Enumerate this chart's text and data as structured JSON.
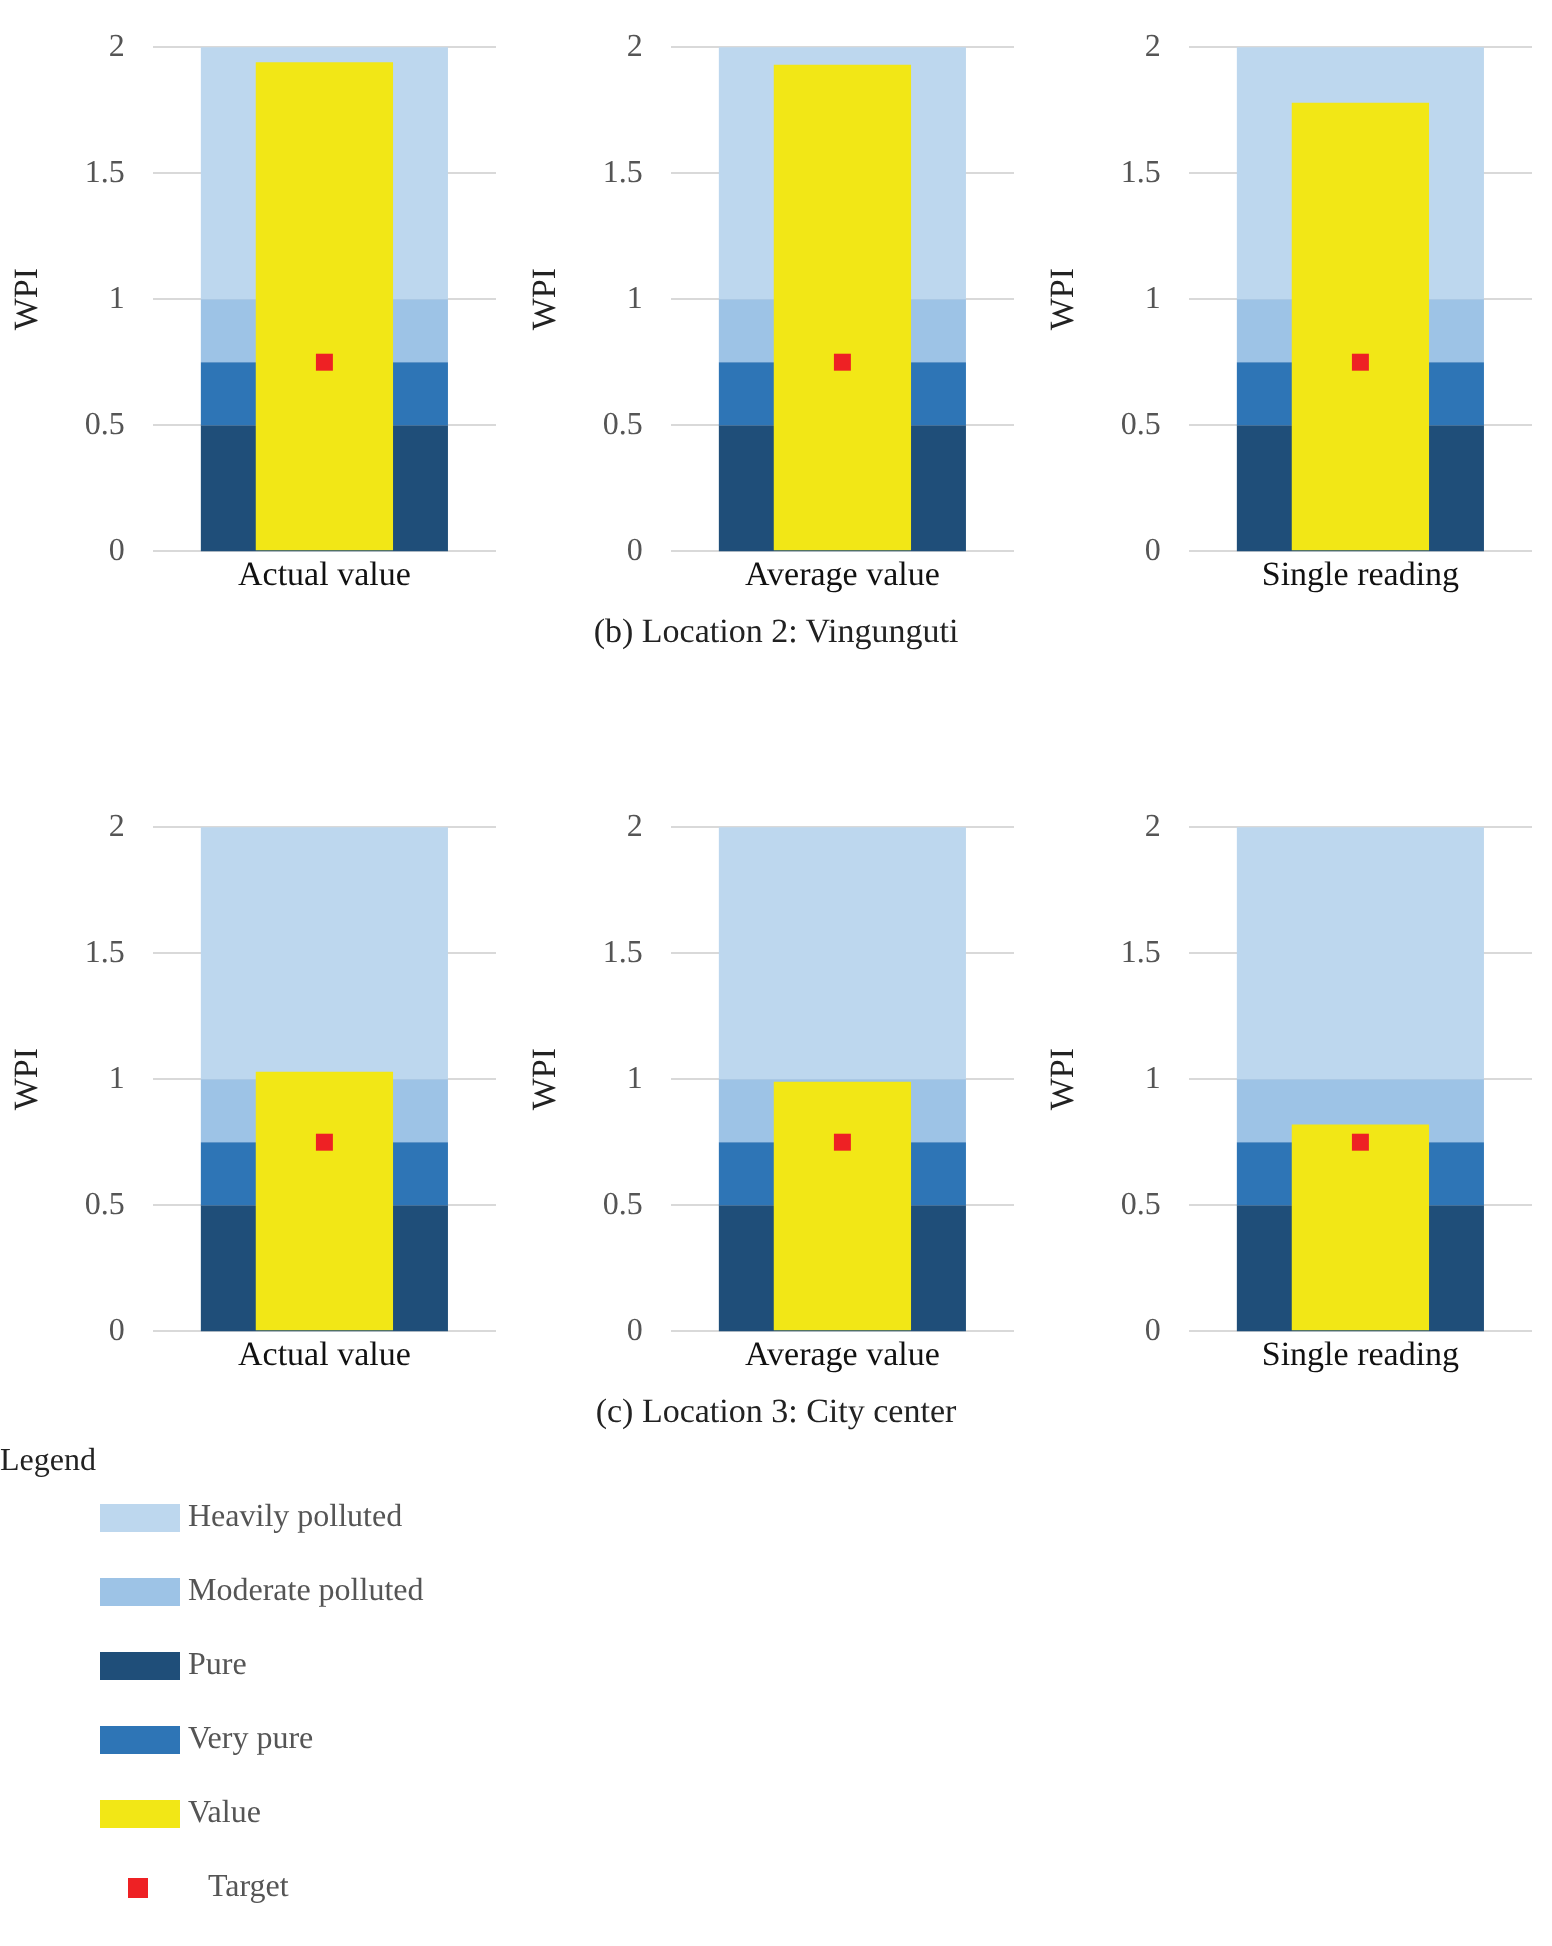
{
  "chart_data": [
    {
      "type": "bar",
      "categories": [
        "Actual value"
      ],
      "ylabel": "WPI",
      "ylim": [
        0,
        2
      ],
      "yticks": [
        0,
        0.5,
        1,
        1.5,
        2
      ],
      "grid": "y",
      "series": [
        {
          "color": "#f2e716",
          "values": [
            1.94
          ]
        },
        {
          "type": "scatter",
          "marker": "square",
          "color": "#ee2124",
          "x": [
            "Actual value"
          ],
          "values": [
            0.75
          ]
        }
      ],
      "bands": [
        {
          "axis": "y",
          "from": 1,
          "to": 2,
          "color": "#bdd7ee"
        },
        {
          "axis": "y",
          "from": 0.75,
          "to": 1,
          "color": "#9dc3e6"
        },
        {
          "axis": "y",
          "from": 0,
          "to": 0.5,
          "color": "#1f4e79"
        },
        {
          "axis": "y",
          "from": 0.5,
          "to": 0.75,
          "color": "#2e75b6"
        }
      ]
    },
    {
      "type": "bar",
      "categories": [
        "Average value"
      ],
      "ylabel": "WPI",
      "ylim": [
        0,
        2
      ],
      "yticks": [
        0,
        0.5,
        1,
        1.5,
        2
      ],
      "grid": "y",
      "annotations": [
        "(b) Location 2: Vingunguti"
      ],
      "series": [
        {
          "color": "#f2e716",
          "values": [
            1.93
          ]
        },
        {
          "type": "scatter",
          "marker": "square",
          "color": "#ee2124",
          "x": [
            "Average value"
          ],
          "values": [
            0.75
          ]
        }
      ],
      "bands": [
        {
          "axis": "y",
          "from": 1,
          "to": 2,
          "color": "#bdd7ee"
        },
        {
          "axis": "y",
          "from": 0.75,
          "to": 1,
          "color": "#9dc3e6"
        },
        {
          "axis": "y",
          "from": 0,
          "to": 0.5,
          "color": "#1f4e79"
        },
        {
          "axis": "y",
          "from": 0.5,
          "to": 0.75,
          "color": "#2e75b6"
        }
      ]
    },
    {
      "type": "bar",
      "categories": [
        "Single reading"
      ],
      "ylabel": "WPI",
      "ylim": [
        0,
        2
      ],
      "yticks": [
        0,
        0.5,
        1,
        1.5,
        2
      ],
      "grid": "y",
      "series": [
        {
          "color": "#f2e716",
          "values": [
            1.78
          ]
        },
        {
          "type": "scatter",
          "marker": "square",
          "color": "#ee2124",
          "x": [
            "Single reading"
          ],
          "values": [
            0.75
          ]
        }
      ],
      "bands": [
        {
          "axis": "y",
          "from": 1,
          "to": 2,
          "color": "#bdd7ee"
        },
        {
          "axis": "y",
          "from": 0.75,
          "to": 1,
          "color": "#9dc3e6"
        },
        {
          "axis": "y",
          "from": 0,
          "to": 0.5,
          "color": "#1f4e79"
        },
        {
          "axis": "y",
          "from": 0.5,
          "to": 0.75,
          "color": "#2e75b6"
        }
      ]
    },
    {
      "type": "bar",
      "categories": [
        "Actual value"
      ],
      "ylabel": "WPI",
      "ylim": [
        0,
        2
      ],
      "yticks": [
        0,
        0.5,
        1,
        1.5,
        2
      ],
      "grid": "y",
      "series": [
        {
          "color": "#f2e716",
          "values": [
            1.03
          ]
        },
        {
          "type": "scatter",
          "marker": "square",
          "color": "#ee2124",
          "x": [
            "Actual value"
          ],
          "values": [
            0.75
          ]
        }
      ],
      "bands": [
        {
          "axis": "y",
          "from": 1,
          "to": 2,
          "color": "#bdd7ee"
        },
        {
          "axis": "y",
          "from": 0.75,
          "to": 1,
          "color": "#9dc3e6"
        },
        {
          "axis": "y",
          "from": 0,
          "to": 0.5,
          "color": "#1f4e79"
        },
        {
          "axis": "y",
          "from": 0.5,
          "to": 0.75,
          "color": "#2e75b6"
        }
      ]
    },
    {
      "type": "bar",
      "categories": [
        "Average value"
      ],
      "ylabel": "WPI",
      "ylim": [
        0,
        2
      ],
      "yticks": [
        0,
        0.5,
        1,
        1.5,
        2
      ],
      "grid": "y",
      "annotations": [
        "(c) Location 3: City center"
      ],
      "series": [
        {
          "color": "#f2e716",
          "values": [
            0.99
          ]
        },
        {
          "type": "scatter",
          "marker": "square",
          "color": "#ee2124",
          "x": [
            "Average value"
          ],
          "values": [
            0.75
          ]
        }
      ],
      "bands": [
        {
          "axis": "y",
          "from": 1,
          "to": 2,
          "color": "#bdd7ee"
        },
        {
          "axis": "y",
          "from": 0.75,
          "to": 1,
          "color": "#9dc3e6"
        },
        {
          "axis": "y",
          "from": 0,
          "to": 0.5,
          "color": "#1f4e79"
        },
        {
          "axis": "y",
          "from": 0.5,
          "to": 0.75,
          "color": "#2e75b6"
        }
      ]
    },
    {
      "type": "bar",
      "categories": [
        "Single reading"
      ],
      "ylabel": "WPI",
      "ylim": [
        0,
        2
      ],
      "yticks": [
        0,
        0.5,
        1,
        1.5,
        2
      ],
      "grid": "y",
      "legend": "bottom",
      "legend_title": "Legend",
      "series": [
        {
          "name": "Value",
          "color": "#f2e716",
          "values": [
            0.82
          ]
        },
        {
          "type": "scatter",
          "marker": "square",
          "name": "Target",
          "color": "#ee2124",
          "x": [
            "Single reading"
          ],
          "values": [
            0.75
          ]
        }
      ],
      "bands": [
        {
          "axis": "y",
          "from": 1,
          "to": 2,
          "label": "Heavily polluted",
          "color": "#bdd7ee"
        },
        {
          "axis": "y",
          "from": 0.75,
          "to": 1,
          "label": "Moderate polluted",
          "color": "#9dc3e6"
        },
        {
          "axis": "y",
          "from": 0,
          "to": 0.5,
          "label": "Pure",
          "color": "#1f4e79"
        },
        {
          "axis": "y",
          "from": 0.5,
          "to": 0.75,
          "label": "Very pure",
          "color": "#2e75b6"
        }
      ]
    }
  ]
}
